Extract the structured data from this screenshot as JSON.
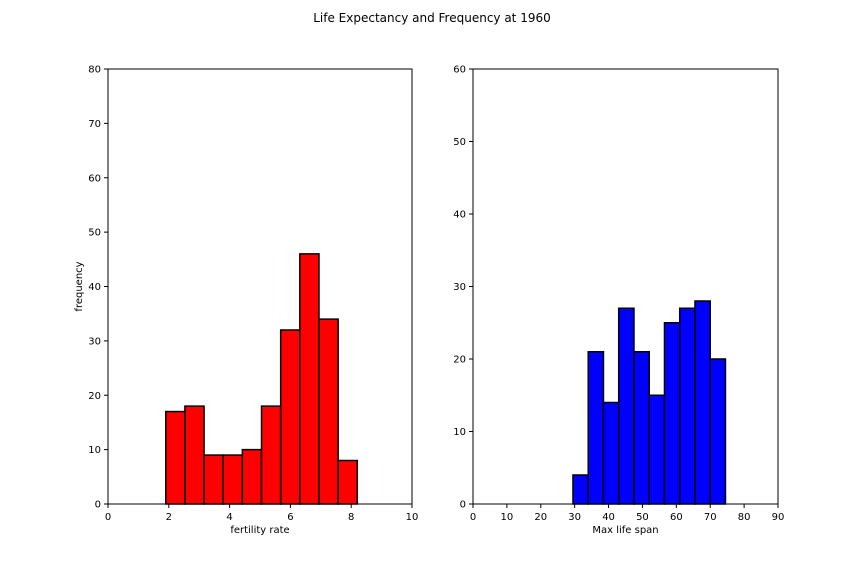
{
  "suptitle": "Life Expectancy and Frequency at 1960",
  "chart_data": [
    {
      "type": "bar",
      "subtype": "histogram",
      "xlabel": "fertility rate",
      "ylabel": "frequency",
      "xlim": [
        0,
        10
      ],
      "ylim": [
        0,
        80
      ],
      "xticks": [
        0,
        2,
        4,
        6,
        8,
        10
      ],
      "yticks": [
        0,
        10,
        20,
        30,
        40,
        50,
        60,
        70,
        80
      ],
      "bin_edges": [
        1.9,
        2.53,
        3.16,
        3.79,
        4.42,
        5.05,
        5.68,
        6.31,
        6.94,
        7.57,
        8.2
      ],
      "values": [
        17,
        18,
        9,
        9,
        10,
        18,
        32,
        46,
        34,
        8
      ],
      "color": "#ff0000",
      "edgecolor": "#000000",
      "grid": false
    },
    {
      "type": "bar",
      "subtype": "histogram",
      "xlabel": "Max life span",
      "ylabel": "",
      "xlim": [
        0,
        90
      ],
      "ylim": [
        0,
        60
      ],
      "xticks": [
        0,
        10,
        20,
        30,
        40,
        50,
        60,
        70,
        80,
        90
      ],
      "yticks": [
        0,
        10,
        20,
        30,
        40,
        50,
        60
      ],
      "bin_edges": [
        29.5,
        34.0,
        38.5,
        43.0,
        47.5,
        52.0,
        56.5,
        61.0,
        65.5,
        70.0,
        74.5
      ],
      "values": [
        4,
        21,
        14,
        27,
        21,
        15,
        25,
        27,
        28,
        20
      ],
      "color": "#0000ff",
      "edgecolor": "#000000",
      "grid": false
    }
  ]
}
